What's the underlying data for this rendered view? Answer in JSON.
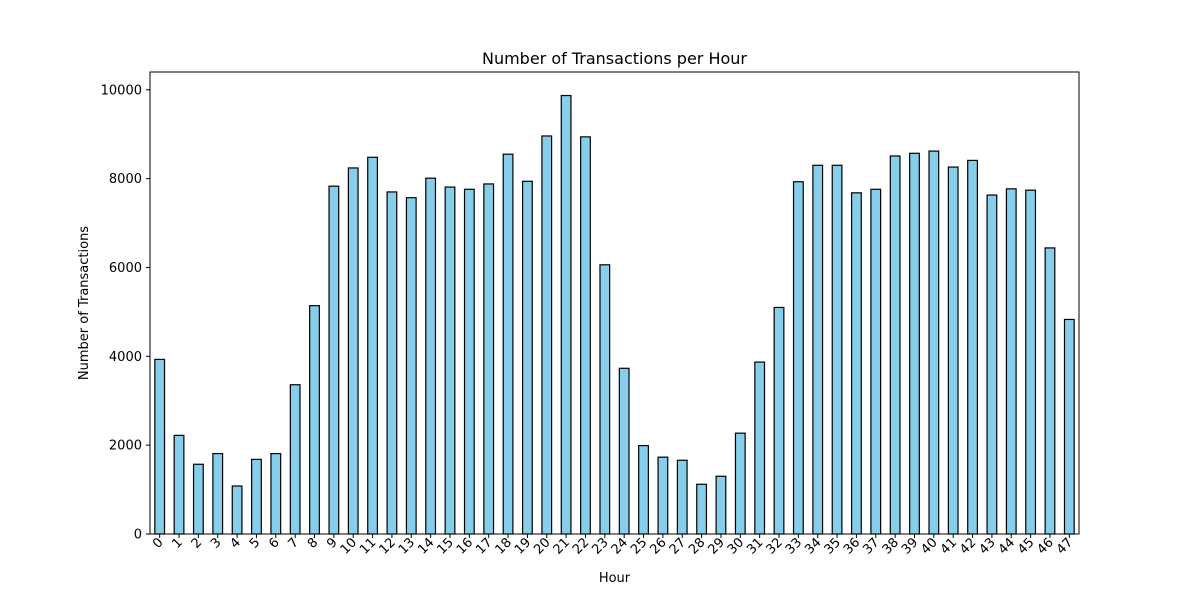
{
  "chart_data": {
    "type": "bar",
    "title": "Number of Transactions per Hour",
    "xlabel": "Hour",
    "ylabel": "Number of Transactions",
    "categories": [
      "0",
      "1",
      "2",
      "3",
      "4",
      "5",
      "6",
      "7",
      "8",
      "9",
      "10",
      "11",
      "12",
      "13",
      "14",
      "15",
      "16",
      "17",
      "18",
      "19",
      "20",
      "21",
      "22",
      "23",
      "24",
      "25",
      "26",
      "27",
      "28",
      "29",
      "30",
      "31",
      "32",
      "33",
      "34",
      "35",
      "36",
      "37",
      "38",
      "39",
      "40",
      "41",
      "42",
      "43",
      "44",
      "45",
      "46",
      "47"
    ],
    "values": [
      3930,
      2220,
      1570,
      1810,
      1080,
      1680,
      1810,
      3360,
      5140,
      7830,
      8240,
      8480,
      7700,
      7570,
      8010,
      7810,
      7760,
      7880,
      8550,
      7940,
      8960,
      9870,
      8940,
      6060,
      3730,
      1990,
      1730,
      1660,
      1120,
      1300,
      2270,
      3870,
      5100,
      7930,
      8300,
      8300,
      7680,
      7760,
      8510,
      8570,
      8620,
      8260,
      8410,
      7630,
      7770,
      7740,
      6440,
      4830
    ],
    "ylim": [
      0,
      10400
    ],
    "yticks": [
      0,
      2000,
      4000,
      6000,
      8000,
      10000
    ],
    "bar_color": "#87ceeb",
    "edge_color": "#000000",
    "grid": false,
    "legend": false
  }
}
